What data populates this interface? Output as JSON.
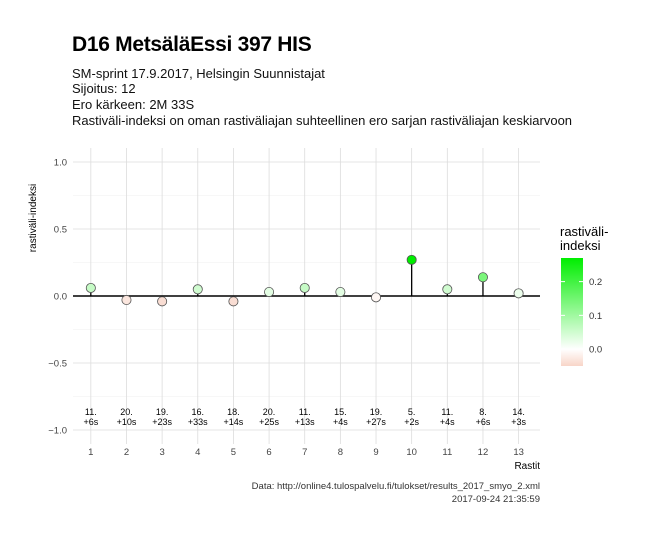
{
  "title": "D16 MetsäläEssi 397 HIS",
  "subtitle_lines": [
    "SM-sprint 17.9.2017, Helsingin Suunnistajat",
    "Sijoitus: 12",
    "Ero kärkeen: 2M 33S",
    "Rastiväli-indeksi on oman rastiväliajan suhteellinen ero sarjan rastiväliajan keskiarvoon"
  ],
  "caption": {
    "source": "Data: http://online4.tulospalvelu.fi/tulokset/results_2017_smyo_2.xml",
    "timestamp": "2017-09-24 21:35:59"
  },
  "chart_data": {
    "type": "scatter",
    "xlabel": "Rastit",
    "ylabel": "rastiväli-indeksi",
    "x": [
      1,
      2,
      3,
      4,
      5,
      6,
      7,
      8,
      9,
      10,
      11,
      12,
      13
    ],
    "y": [
      0.06,
      -0.03,
      -0.04,
      0.05,
      -0.04,
      0.03,
      0.06,
      0.03,
      -0.01,
      0.27,
      0.05,
      0.14,
      0.02
    ],
    "point_labels": [
      [
        "11.",
        "+6s"
      ],
      [
        "20.",
        "+10s"
      ],
      [
        "19.",
        "+23s"
      ],
      [
        "16.",
        "+33s"
      ],
      [
        "18.",
        "+14s"
      ],
      [
        "20.",
        "+25s"
      ],
      [
        "11.",
        "+13s"
      ],
      [
        "15.",
        "+4s"
      ],
      [
        "19.",
        "+27s"
      ],
      [
        "5.",
        "+2s"
      ],
      [
        "11.",
        "+4s"
      ],
      [
        "8.",
        "+6s"
      ],
      [
        "14.",
        "+3s"
      ]
    ],
    "xticks": [
      "1",
      "2",
      "3",
      "4",
      "5",
      "6",
      "7",
      "8",
      "9",
      "10",
      "11",
      "12",
      "13"
    ],
    "yticks": [
      1.0,
      0.5,
      0.0,
      -0.5,
      -1.0
    ],
    "ytick_labels": [
      "1.0",
      "0.5",
      "0.0",
      "−0.5",
      "−1.0"
    ],
    "xlim": [
      0.5,
      13.6
    ],
    "ylim": [
      -1.0,
      1.0
    ],
    "grid": true,
    "legend": {
      "title_lines": [
        "rastiväli-",
        "indeksi"
      ],
      "tick_labels": [
        "0.2",
        "0.1",
        "0.0"
      ],
      "ticks": [
        0.2,
        0.1,
        0.0
      ],
      "range": [
        -0.05,
        0.27
      ],
      "low_color": "#f8d5c8",
      "mid_color": "#ffffff",
      "high_color": "#00ee00"
    }
  }
}
